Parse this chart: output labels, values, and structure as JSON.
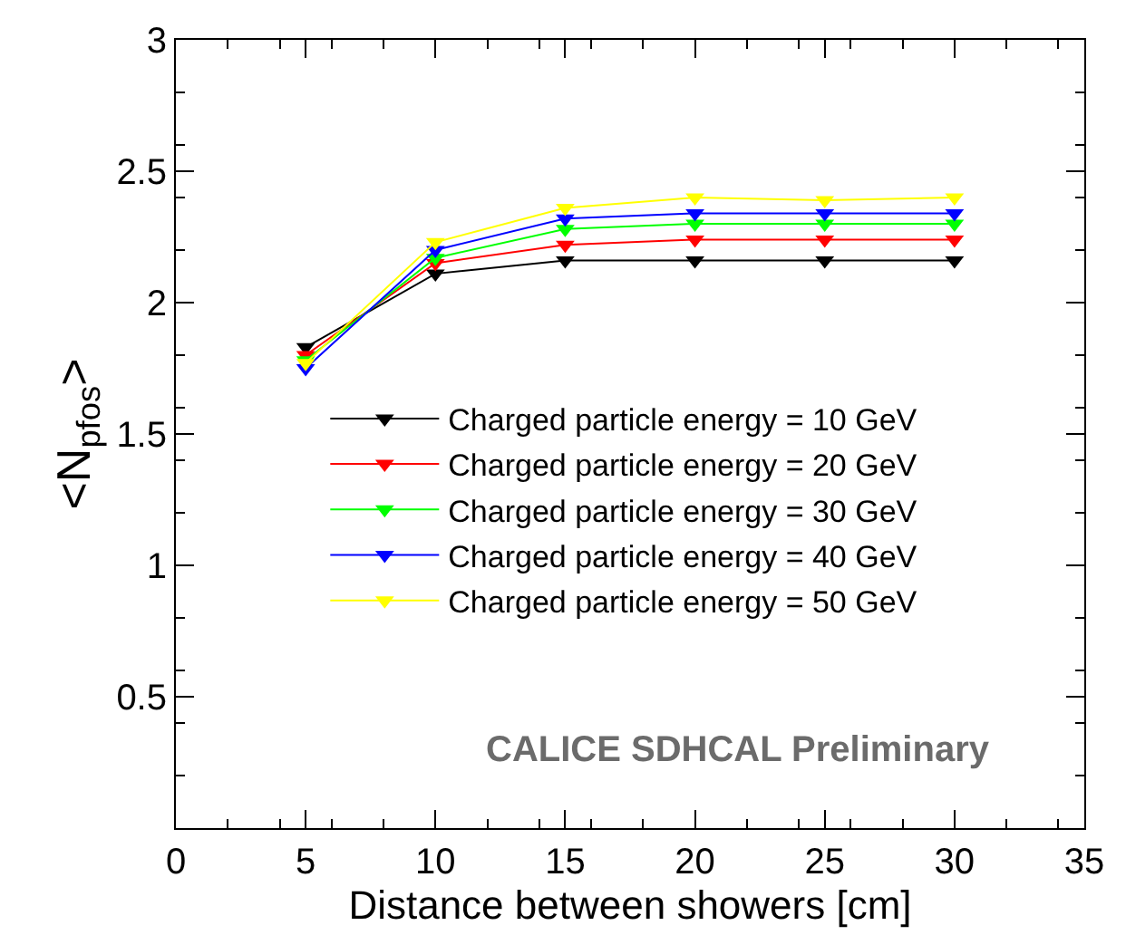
{
  "chart_data": {
    "type": "line",
    "xlabel": "Distance between showers [cm]",
    "ylabel": "<N$_{pfos}$>",
    "x": [
      5,
      10,
      15,
      20,
      25,
      30
    ],
    "series": [
      {
        "name": "Charged particle energy = 10 GeV",
        "color": "#000000",
        "values": [
          1.83,
          2.11,
          2.16,
          2.16,
          2.16,
          2.16
        ]
      },
      {
        "name": "Charged particle energy = 20 GeV",
        "color": "#ff0000",
        "values": [
          1.8,
          2.15,
          2.22,
          2.24,
          2.24,
          2.24
        ]
      },
      {
        "name": "Charged particle energy = 30 GeV",
        "color": "#00ff00",
        "values": [
          1.78,
          2.17,
          2.28,
          2.3,
          2.3,
          2.3
        ]
      },
      {
        "name": "Charged particle energy = 40 GeV",
        "color": "#0000ff",
        "values": [
          1.75,
          2.2,
          2.32,
          2.34,
          2.34,
          2.34
        ]
      },
      {
        "name": "Charged particle energy = 50 GeV",
        "color": "#ffff00",
        "values": [
          1.77,
          2.23,
          2.36,
          2.4,
          2.39,
          2.4
        ]
      }
    ],
    "xlim": [
      0,
      35
    ],
    "xticks": [
      0,
      5,
      10,
      15,
      20,
      25,
      30,
      35
    ],
    "ylim": [
      0,
      3
    ],
    "yticks": [
      {
        "value": 0,
        "label": null
      },
      0.5,
      1,
      1.5,
      2,
      2.5,
      3
    ],
    "legend": "center right",
    "marker": "triangle",
    "line_style": "solid",
    "annotations": [
      "CALICE SDHCAL Preliminary"
    ]
  }
}
